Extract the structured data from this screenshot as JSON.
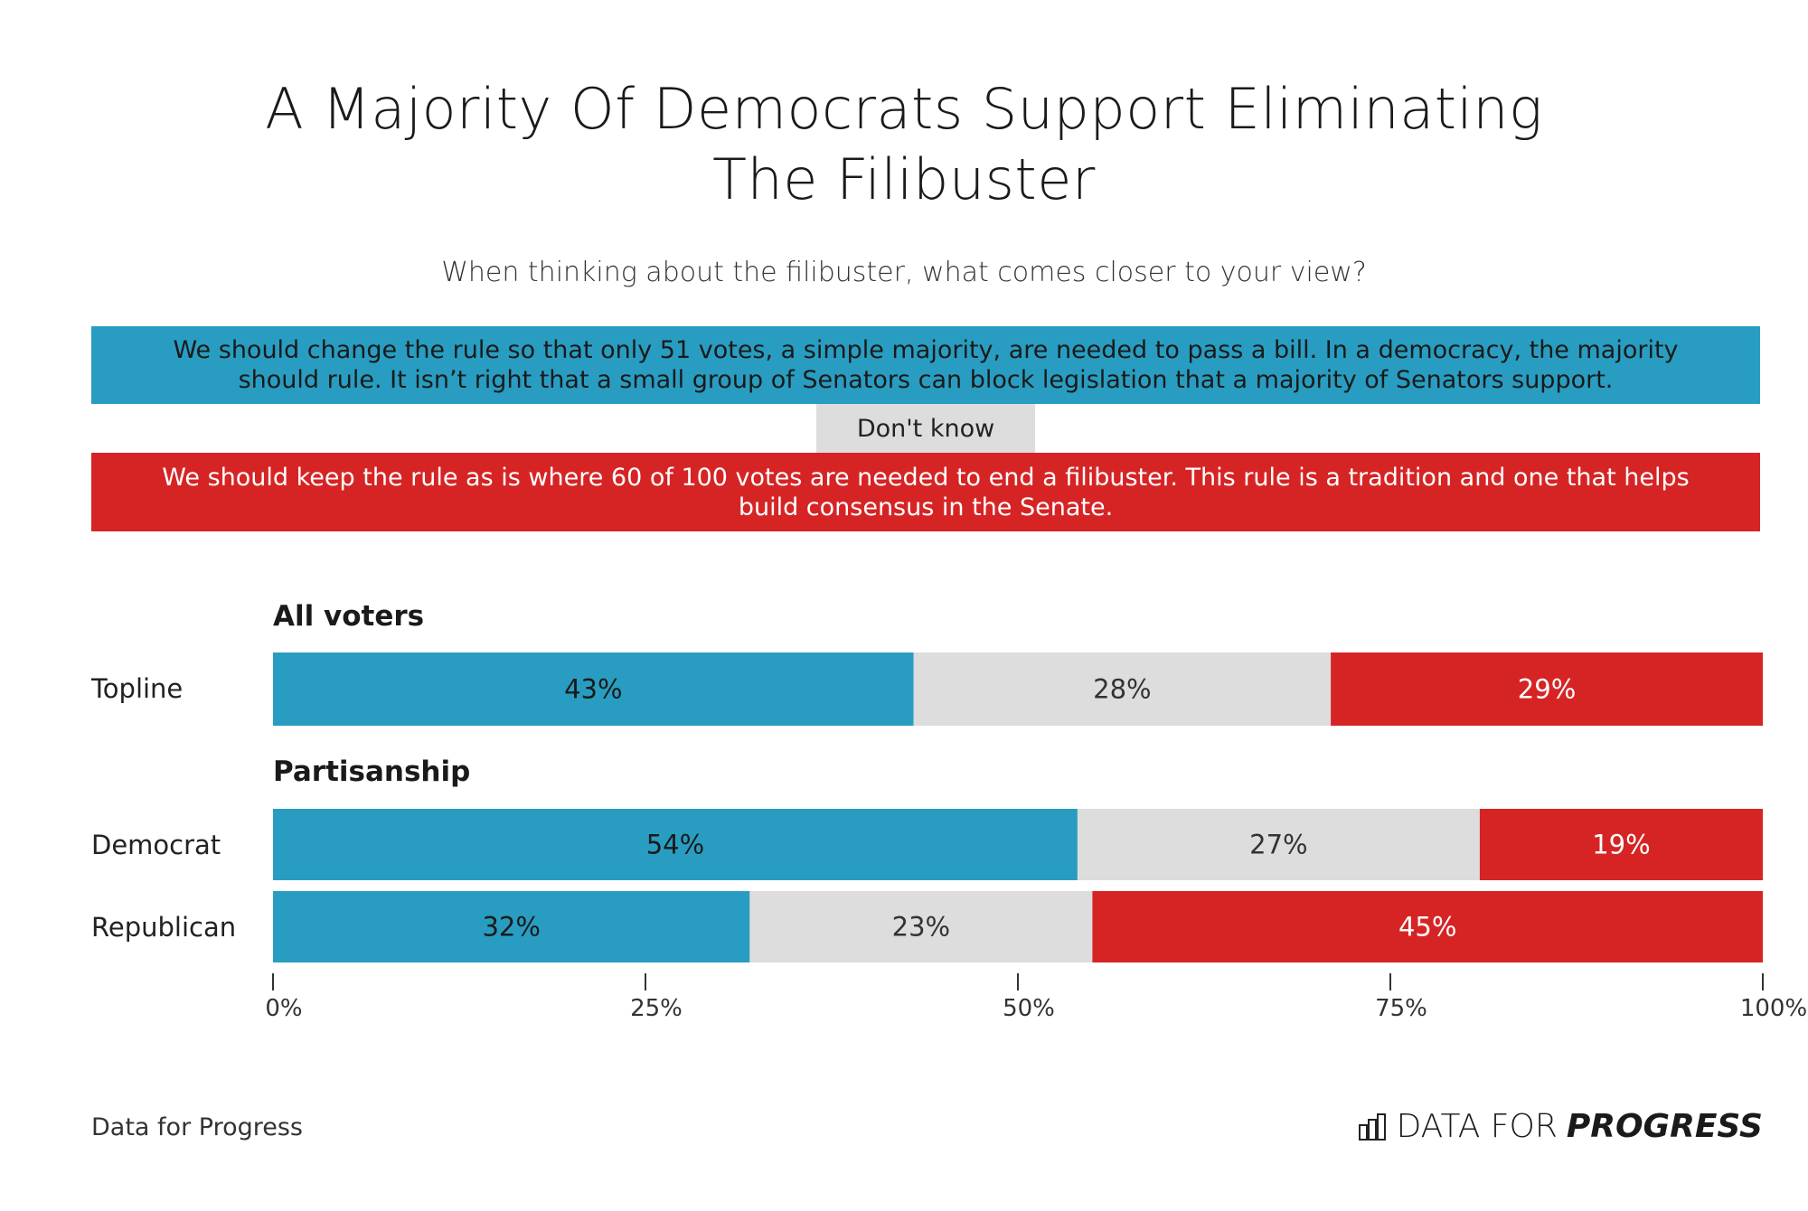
{
  "chart_data": {
    "type": "bar",
    "stacked": "horizontal-100%",
    "title": "A Majority Of Democrats Support Eliminating The Filibuster",
    "subtitle": "When thinking about the filibuster, what comes closer to your view?",
    "legend": [
      {
        "name": "We should change the rule so that only 51 votes, a simple majority, are needed to pass a bill. In a democracy, the majority should rule. It isn’t right that a small group of Senators can block legislation that a majority of Senators support.",
        "color": "#289dc1"
      },
      {
        "name": "Don't know",
        "color": "#dddddd"
      },
      {
        "name": "We should keep the rule as is where 60 of 100 votes are needed to end a filibuster. This rule is a tradition and one that helps build consensus in the Senate.",
        "color": "#d62425"
      }
    ],
    "groups": [
      {
        "name": "All voters",
        "rows": [
          {
            "label": "Topline",
            "values": [
              43,
              28,
              29
            ]
          }
        ]
      },
      {
        "name": "Partisanship",
        "rows": [
          {
            "label": "Democrat",
            "values": [
              54,
              27,
              19
            ]
          },
          {
            "label": "Republican",
            "values": [
              32,
              23,
              45
            ]
          }
        ]
      }
    ],
    "xlim": [
      0,
      100
    ],
    "xticks": [
      "0%",
      "25%",
      "50%",
      "75%",
      "100%"
    ],
    "legend_placement": "top"
  },
  "footer": {
    "source": "Data for Progress",
    "logo_light": "DATA FOR",
    "logo_bold": "PROGRESS"
  }
}
